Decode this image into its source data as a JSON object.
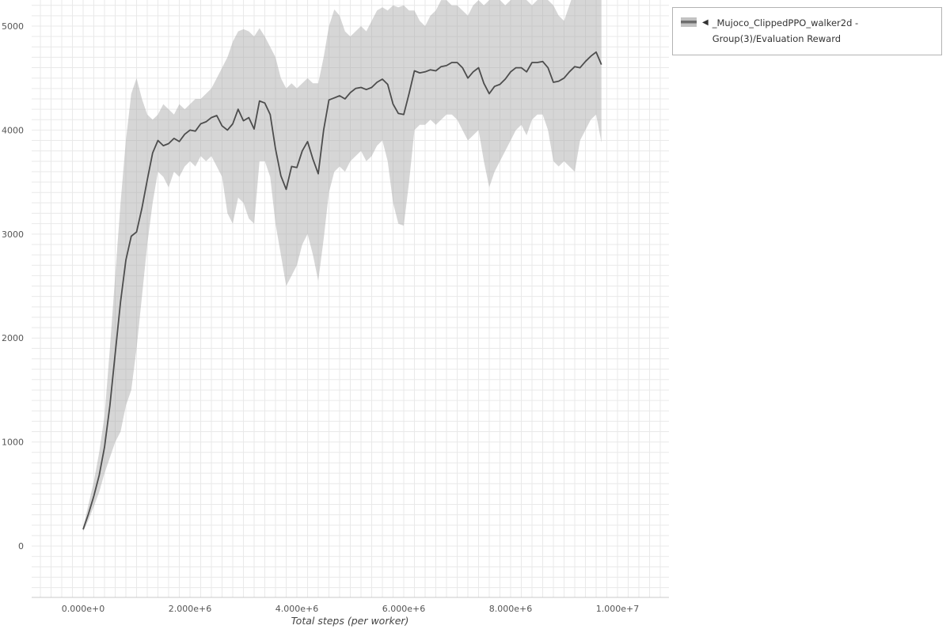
{
  "legend": {
    "collapse_icon": "◀",
    "label": "_Mujoco_ClippedPPO_walker2d - Group(3)/Evaluation Reward",
    "swatch_band_color": "#c2c2c2",
    "swatch_line_color": "#6e6e6e"
  },
  "chart_data": {
    "type": "line",
    "title": "",
    "xlabel": "Total steps (per worker)",
    "ylabel": "",
    "legend_position": "top-right-outside",
    "grid": "on",
    "grid_color": "#e9e9e9",
    "band_color": "rgba(165,165,165,0.45)",
    "line_color": "#4d4d4d",
    "axis_line_color": "#c9c9c9",
    "xlim": [
      -963000,
      10963000
    ],
    "ylim": [
      -494,
      5251
    ],
    "x_minor_step": 200000,
    "y_minor_step": 100,
    "x_tick_values": [
      0,
      2000000,
      4000000,
      6000000,
      8000000,
      10000000
    ],
    "x_tick_labels": [
      "0.000e+0",
      "2.000e+6",
      "4.000e+6",
      "6.000e+6",
      "8.000e+6",
      "1.000e+7"
    ],
    "y_tick_values": [
      0,
      1000,
      2000,
      3000,
      4000,
      5000
    ],
    "y_tick_labels": [
      "0",
      "1000",
      "2000",
      "3000",
      "4000",
      "5000"
    ],
    "series": [
      {
        "name": "_Mujoco_ClippedPPO_walker2d - Group(3)/Evaluation Reward",
        "x": {
          "start": 0,
          "step": 100000,
          "count": 98
        },
        "mean": [
          160,
          310,
          480,
          680,
          950,
          1350,
          1850,
          2350,
          2750,
          2980,
          3020,
          3250,
          3520,
          3780,
          3900,
          3850,
          3870,
          3920,
          3890,
          3960,
          4000,
          3990,
          4060,
          4080,
          4120,
          4140,
          4040,
          4000,
          4060,
          4200,
          4090,
          4120,
          4010,
          4280,
          4260,
          4150,
          3820,
          3560,
          3430,
          3650,
          3640,
          3800,
          3890,
          3720,
          3580,
          4000,
          4290,
          4310,
          4330,
          4300,
          4360,
          4400,
          4410,
          4390,
          4410,
          4460,
          4490,
          4440,
          4250,
          4160,
          4150,
          4350,
          4570,
          4550,
          4560,
          4580,
          4570,
          4610,
          4620,
          4650,
          4650,
          4600,
          4500,
          4560,
          4600,
          4450,
          4350,
          4420,
          4440,
          4490,
          4560,
          4600,
          4600,
          4560,
          4650,
          4650,
          4660,
          4600,
          4460,
          4470,
          4500,
          4560,
          4610,
          4600,
          4660,
          4710,
          4750,
          4630
        ],
        "lower": [
          140,
          250,
          380,
          520,
          700,
          850,
          1000,
          1100,
          1350,
          1500,
          1900,
          2400,
          2900,
          3300,
          3600,
          3550,
          3450,
          3600,
          3550,
          3650,
          3700,
          3650,
          3750,
          3700,
          3750,
          3650,
          3550,
          3200,
          3100,
          3350,
          3300,
          3150,
          3100,
          3700,
          3700,
          3550,
          3100,
          2800,
          2500,
          2600,
          2700,
          2900,
          3000,
          2800,
          2550,
          2950,
          3400,
          3600,
          3650,
          3600,
          3700,
          3750,
          3800,
          3700,
          3750,
          3850,
          3900,
          3700,
          3300,
          3100,
          3080,
          3500,
          4000,
          4050,
          4050,
          4100,
          4050,
          4100,
          4150,
          4150,
          4100,
          4000,
          3900,
          3950,
          4000,
          3700,
          3450,
          3600,
          3700,
          3800,
          3900,
          4000,
          4050,
          3950,
          4100,
          4150,
          4150,
          4000,
          3700,
          3650,
          3700,
          3650,
          3600,
          3900,
          4000,
          4100,
          4150,
          3880
        ],
        "upper": [
          180,
          400,
          620,
          900,
          1250,
          1900,
          2600,
          3300,
          3900,
          4350,
          4500,
          4300,
          4150,
          4100,
          4150,
          4250,
          4200,
          4150,
          4250,
          4200,
          4250,
          4300,
          4300,
          4350,
          4400,
          4500,
          4600,
          4700,
          4850,
          4950,
          4970,
          4950,
          4900,
          4980,
          4900,
          4800,
          4700,
          4500,
          4400,
          4450,
          4400,
          4450,
          4500,
          4450,
          4450,
          4700,
          5000,
          5160,
          5100,
          4950,
          4900,
          4950,
          5000,
          4950,
          5050,
          5150,
          5180,
          5150,
          5200,
          5180,
          5200,
          5150,
          5150,
          5050,
          5000,
          5100,
          5150,
          5250,
          5250,
          5200,
          5200,
          5150,
          5100,
          5200,
          5250,
          5200,
          5250,
          5300,
          5250,
          5200,
          5250,
          5300,
          5320,
          5250,
          5200,
          5250,
          5300,
          5250,
          5200,
          5100,
          5050,
          5200,
          5350,
          5380,
          5300,
          5250,
          5280,
          5330
        ]
      }
    ]
  }
}
